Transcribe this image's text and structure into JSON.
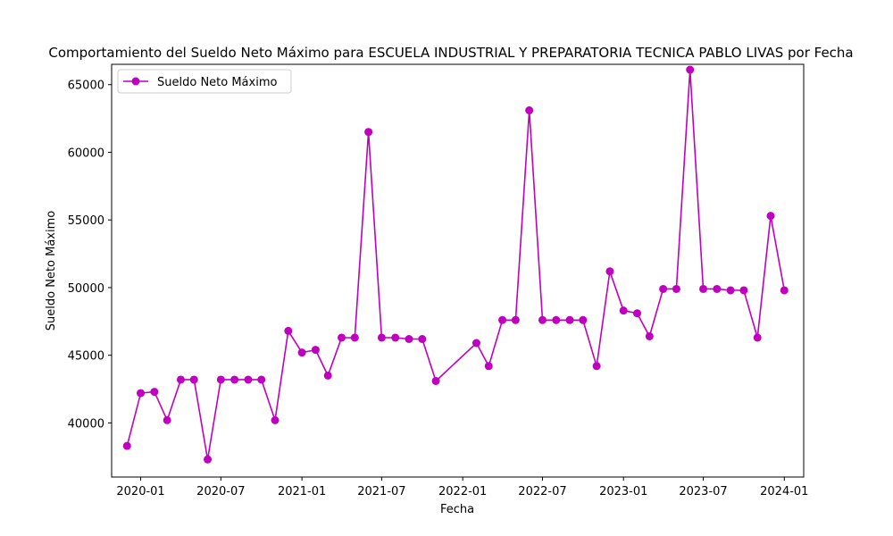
{
  "chart_data": {
    "type": "line",
    "title": "Comportamiento del Sueldo Neto Máximo para ESCUELA INDUSTRIAL Y PREPARATORIA TECNICA PABLO LIVAS por Fecha",
    "xlabel": "Fecha",
    "ylabel": "Sueldo Neto Máximo",
    "ylim": [
      36000,
      66500
    ],
    "xlim": [
      "2019-10-27",
      "2024-02-14"
    ],
    "yticks": [
      40000,
      45000,
      50000,
      55000,
      60000,
      65000
    ],
    "xticks": [
      "2020-01",
      "2020-07",
      "2021-01",
      "2021-07",
      "2022-01",
      "2022-07",
      "2023-01",
      "2023-07",
      "2024-01"
    ],
    "grid": false,
    "legend": "upper left",
    "color": "#bf00bf",
    "series": [
      {
        "name": "Sueldo Neto Máximo",
        "x": [
          "2019-12-01",
          "2020-01-01",
          "2020-02-01",
          "2020-03-01",
          "2020-04-01",
          "2020-05-01",
          "2020-06-01",
          "2020-07-01",
          "2020-08-01",
          "2020-09-01",
          "2020-10-01",
          "2020-11-01",
          "2020-12-01",
          "2021-01-01",
          "2021-02-01",
          "2021-03-01",
          "2021-04-01",
          "2021-05-01",
          "2021-06-01",
          "2021-07-01",
          "2021-08-01",
          "2021-09-01",
          "2021-10-01",
          "2021-11-01",
          "2022-02-01",
          "2022-03-01",
          "2022-04-01",
          "2022-05-01",
          "2022-06-01",
          "2022-07-01",
          "2022-08-01",
          "2022-09-01",
          "2022-10-01",
          "2022-11-01",
          "2022-12-01",
          "2023-01-01",
          "2023-02-01",
          "2023-03-01",
          "2023-04-01",
          "2023-05-01",
          "2023-06-01",
          "2023-07-01",
          "2023-08-01",
          "2023-09-01",
          "2023-10-01",
          "2023-11-01",
          "2023-12-01",
          "2024-01-01"
        ],
        "y": [
          38300,
          42200,
          42300,
          40200,
          43200,
          43200,
          37300,
          43200,
          43200,
          43200,
          43200,
          40200,
          46800,
          45200,
          45400,
          43500,
          46300,
          46300,
          61500,
          46300,
          46300,
          46200,
          46200,
          43100,
          45900,
          44200,
          47600,
          47600,
          63100,
          47600,
          47600,
          47600,
          47600,
          44200,
          51200,
          48300,
          48100,
          46400,
          49900,
          49900,
          66100,
          49900,
          49900,
          49800,
          49800,
          46300,
          55300,
          49800
        ]
      }
    ]
  }
}
